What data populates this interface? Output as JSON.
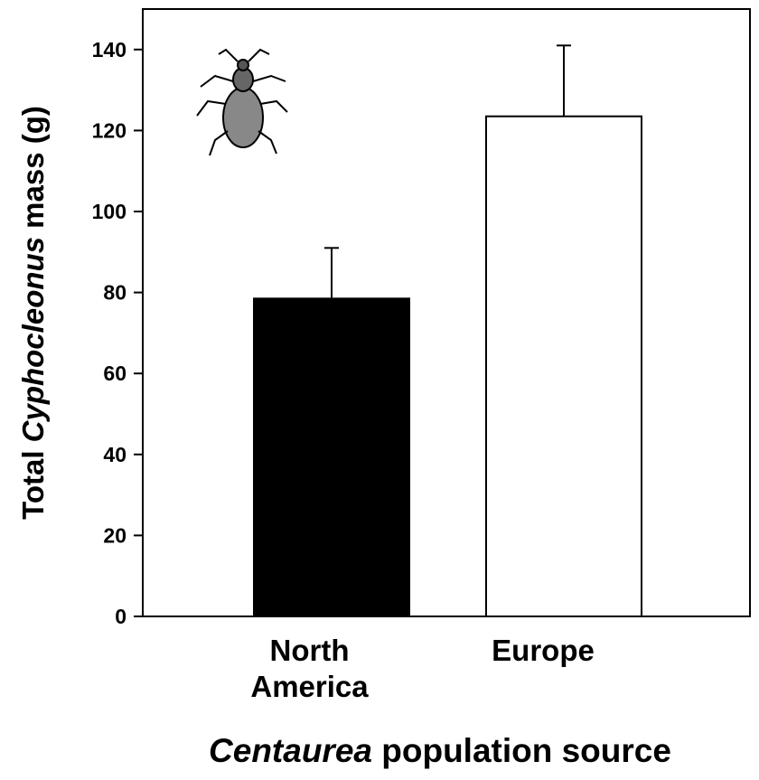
{
  "chart_data": {
    "type": "bar",
    "ylabel": [
      {
        "text": "Total ",
        "italic": false
      },
      {
        "text": "Cyphocleonus",
        "italic": true
      },
      {
        "text": " mass (g)",
        "italic": false
      }
    ],
    "xlabel": [
      {
        "text": "Centaurea",
        "italic": true
      },
      {
        "text": " population source",
        "italic": false
      }
    ],
    "categories": [
      "North America",
      "Europe"
    ],
    "values": [
      78.5,
      123.5
    ],
    "errors": [
      12.5,
      17.5
    ],
    "colors": [
      "#000000",
      "#ffffff"
    ],
    "ylim": [
      0,
      150
    ],
    "yticks": [
      0,
      20,
      40,
      60,
      80,
      100,
      120,
      140
    ]
  }
}
